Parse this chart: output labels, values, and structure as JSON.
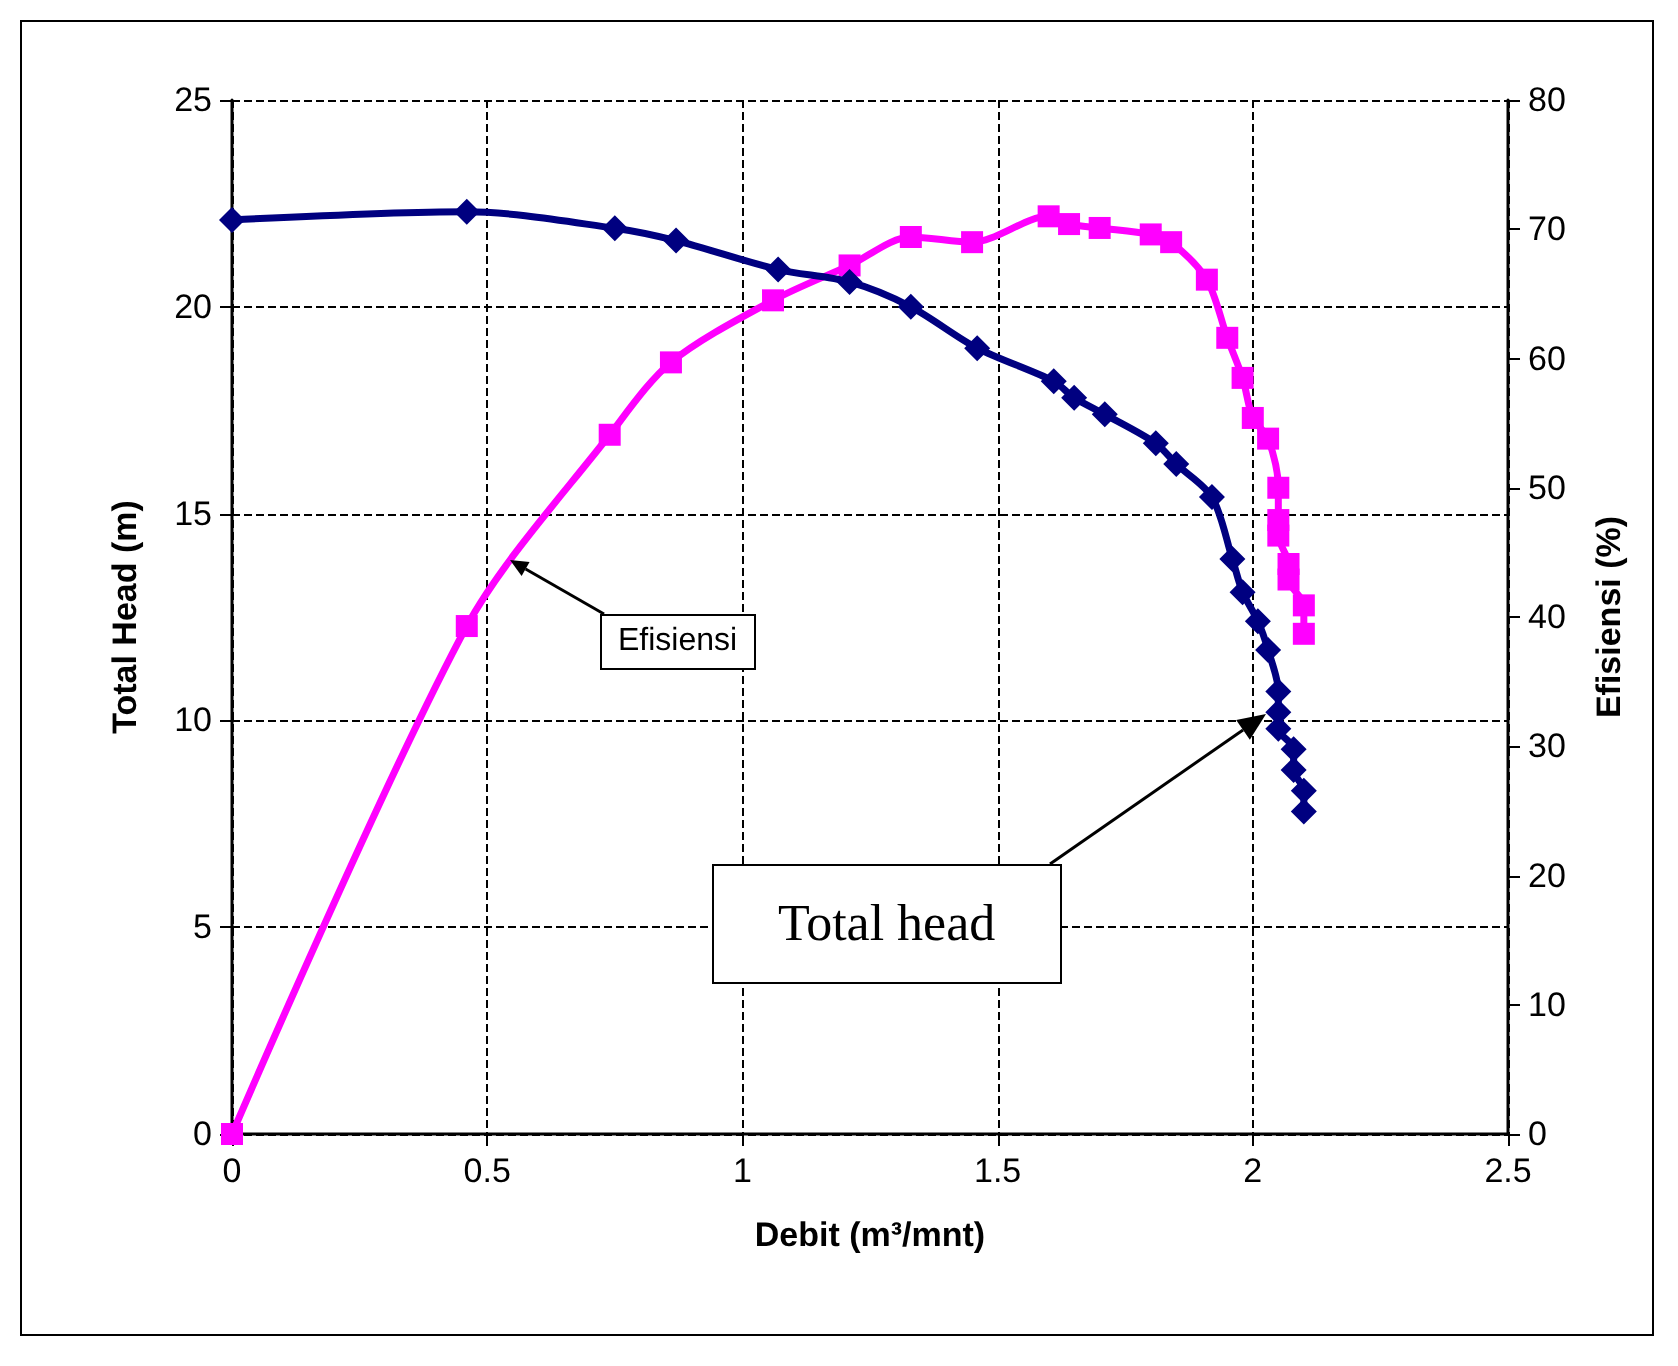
{
  "chart_data": {
    "type": "line",
    "xlabel": "Debit (m³/mnt)",
    "ylabel": "Total Head (m)",
    "y2label": "Efisiensi (%)",
    "xlim": [
      0,
      2.5
    ],
    "xticks": [
      0,
      0.5,
      1,
      1.5,
      2,
      2.5
    ],
    "ylim": [
      0,
      25
    ],
    "yticks": [
      0,
      5,
      10,
      15,
      20,
      25
    ],
    "y2lim": [
      0,
      80
    ],
    "y2ticks": [
      0,
      10,
      20,
      30,
      40,
      50,
      60,
      70,
      80
    ],
    "grid": true,
    "line_style": "solid",
    "series": [
      {
        "color": "#000080",
        "marker": "diamond",
        "x": [
          0,
          0.46,
          0.75,
          0.87,
          1.07,
          1.21,
          1.33,
          1.46,
          1.61,
          1.65,
          1.71,
          1.81,
          1.85,
          1.92,
          1.96,
          1.98,
          2.01,
          2.03,
          2.05,
          2.05,
          2.05,
          2.08,
          2.08,
          2.1,
          2.1
        ],
        "values": [
          22.1,
          22.3,
          21.9,
          21.6,
          20.9,
          20.6,
          20.0,
          19.0,
          18.2,
          17.8,
          17.4,
          16.7,
          16.2,
          15.4,
          13.9,
          13.1,
          12.4,
          11.7,
          10.7,
          10.2,
          9.8,
          9.3,
          8.8,
          8.3,
          7.8
        ]
      },
      {
        "color": "#ff00ff",
        "marker": "square",
        "axis": "y2",
        "x": [
          0,
          0.46,
          0.74,
          0.86,
          1.06,
          1.21,
          1.33,
          1.45,
          1.6,
          1.64,
          1.7,
          1.8,
          1.84,
          1.91,
          1.95,
          1.98,
          2.0,
          2.03,
          2.05,
          2.05,
          2.05,
          2.07,
          2.07,
          2.1,
          2.1
        ],
        "values": [
          0,
          39.3,
          54.1,
          59.7,
          64.5,
          67.2,
          69.4,
          69.0,
          71.0,
          70.4,
          70.1,
          69.6,
          69.0,
          66.1,
          61.6,
          58.5,
          55.4,
          53.8,
          50.0,
          47.5,
          46.3,
          44.1,
          42.9,
          40.9,
          38.7
        ]
      }
    ],
    "annotations": [
      "Efisiensi",
      "Total head"
    ]
  }
}
